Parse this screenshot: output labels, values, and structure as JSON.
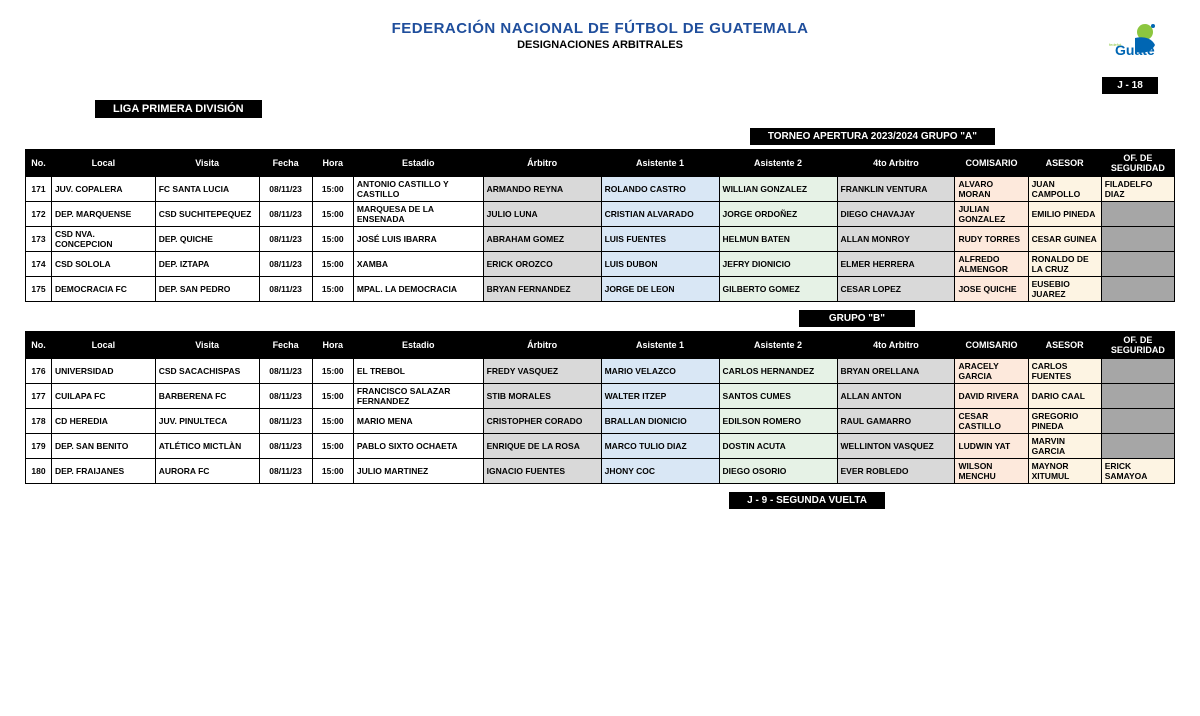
{
  "header": {
    "federation": "FEDERACIÓN NACIONAL DE FÚTBOL DE GUATEMALA",
    "subtitle": "DESIGNACIONES ARBITRALES",
    "liga": "LIGA PRIMERA DIVISIÓN",
    "jornada": "J  -  18",
    "torneo": "TORNEO APERTURA  2023/2024       GRUPO  \"A\"",
    "grupoB": "GRUPO  \"B\"",
    "segunda": "J - 9 -  SEGUNDA VUELTA",
    "logo_text": "Guate"
  },
  "columns": [
    "No.",
    "Local",
    "Visita",
    "Fecha",
    "Hora",
    "Estadio",
    "Árbitro",
    "Asistente 1",
    "Asistente 2",
    "4to Arbitro",
    "COMISARIO",
    "ASESOR",
    "OF. DE SEGURIDAD"
  ],
  "groupA": [
    {
      "no": "171",
      "local": "JUV. COPALERA",
      "visita": "FC SANTA LUCIA",
      "fecha": "08/11/23",
      "hora": "15:00",
      "estadio": "ANTONIO CASTILLO Y CASTILLO",
      "arbitro": "ARMANDO REYNA",
      "a1": "ROLANDO CASTRO",
      "a2": "WILLIAN GONZALEZ",
      "a4": "FRANKLIN VENTURA",
      "com": "ALVARO MORAN",
      "ase": "JUAN CAMPOLLO",
      "seg": "FILADELFO DIAZ"
    },
    {
      "no": "172",
      "local": "DEP. MARQUENSE",
      "visita": "CSD SUCHITEPEQUEZ",
      "fecha": "08/11/23",
      "hora": "15:00",
      "estadio": "MARQUESA DE LA ENSENADA",
      "arbitro": "JULIO LUNA",
      "a1": "CRISTIAN ALVARADO",
      "a2": "JORGE ORDOÑEZ",
      "a4": "DIEGO CHAVAJAY",
      "com": "JULIAN GONZALEZ",
      "ase": "EMILIO PINEDA",
      "seg": ""
    },
    {
      "no": "173",
      "local": "CSD NVA. CONCEPCION",
      "visita": "DEP. QUICHE",
      "fecha": "08/11/23",
      "hora": "15:00",
      "estadio": "JOSÉ LUIS IBARRA",
      "arbitro": "ABRAHAM GOMEZ",
      "a1": "LUIS FUENTES",
      "a2": "HELMUN BATEN",
      "a4": "ALLAN MONROY",
      "com": "RUDY TORRES",
      "ase": "CESAR GUINEA",
      "seg": ""
    },
    {
      "no": "174",
      "local": "CSD SOLOLA",
      "visita": "DEP. IZTAPA",
      "fecha": "08/11/23",
      "hora": "15:00",
      "estadio": "XAMBA",
      "arbitro": "ERICK OROZCO",
      "a1": "LUIS DUBON",
      "a2": "JEFRY DIONICIO",
      "a4": "ELMER HERRERA",
      "com": "ALFREDO ALMENGOR",
      "ase": "RONALDO DE LA CRUZ",
      "seg": ""
    },
    {
      "no": "175",
      "local": "DEMOCRACIA FC",
      "visita": "DEP. SAN PEDRO",
      "fecha": "08/11/23",
      "hora": "15:00",
      "estadio": "MPAL. LA DEMOCRACIA",
      "arbitro": "BRYAN FERNANDEZ",
      "a1": "JORGE DE LEON",
      "a2": "GILBERTO GOMEZ",
      "a4": "CESAR LOPEZ",
      "com": "JOSE QUICHE",
      "ase": "EUSEBIO JUAREZ",
      "seg": ""
    }
  ],
  "groupB": [
    {
      "no": "176",
      "local": "UNIVERSIDAD",
      "visita": "CSD SACACHISPAS",
      "fecha": "08/11/23",
      "hora": "15:00",
      "estadio": "EL TREBOL",
      "arbitro": "FREDY VASQUEZ",
      "a1": "MARIO VELAZCO",
      "a2": "CARLOS HERNANDEZ",
      "a4": "BRYAN ORELLANA",
      "com": "ARACELY GARCIA",
      "ase": "CARLOS FUENTES",
      "seg": ""
    },
    {
      "no": "177",
      "local": "CUILAPA FC",
      "visita": "BARBERENA FC",
      "fecha": "08/11/23",
      "hora": "15:00",
      "estadio": "FRANCISCO SALAZAR FERNANDEZ",
      "arbitro": "STIB MORALES",
      "a1": "WALTER ITZEP",
      "a2": "SANTOS CUMES",
      "a4": "ALLAN ANTON",
      "com": "DAVID RIVERA",
      "ase": "DARIO CAAL",
      "seg": ""
    },
    {
      "no": "178",
      "local": "CD HEREDIA",
      "visita": "JUV. PINULTECA",
      "fecha": "08/11/23",
      "hora": "15:00",
      "estadio": "MARIO MENA",
      "arbitro": "CRISTOPHER CORADO",
      "a1": "BRALLAN DIONICIO",
      "a2": "EDILSON ROMERO",
      "a4": "RAUL GAMARRO",
      "com": "CESAR CASTILLO",
      "ase": "GREGORIO PINEDA",
      "seg": ""
    },
    {
      "no": "179",
      "local": "DEP. SAN BENITO",
      "visita": "ATLÉTICO MICTLÀN",
      "fecha": "08/11/23",
      "hora": "15:00",
      "estadio": "PABLO SIXTO OCHAETA",
      "arbitro": "ENRIQUE DE LA ROSA",
      "a1": "MARCO TULIO DIAZ",
      "a2": "DOSTIN ACUTA",
      "a4": "WELLINTON VASQUEZ",
      "com": "LUDWIN YAT",
      "ase": "MARVIN GARCIA",
      "seg": ""
    },
    {
      "no": "180",
      "local": "DEP. FRAIJANES",
      "visita": "AURORA FC",
      "fecha": "08/11/23",
      "hora": "15:00",
      "estadio": "JULIO MARTINEZ",
      "arbitro": "IGNACIO FUENTES",
      "a1": "JHONY COC",
      "a2": "DIEGO OSORIO",
      "a4": "EVER ROBLEDO",
      "com": "WILSON MENCHU",
      "ase": "MAYNOR XITUMUL",
      "seg": "ERICK SAMAYOA"
    }
  ],
  "colors": {
    "arbitro": "c-gray",
    "a1": "c-blue",
    "a2": "c-green",
    "a4": "c-gray",
    "com": "c-peach",
    "ase": "c-cream",
    "segEmpty": "c-dgray",
    "segFill": "c-cream"
  }
}
